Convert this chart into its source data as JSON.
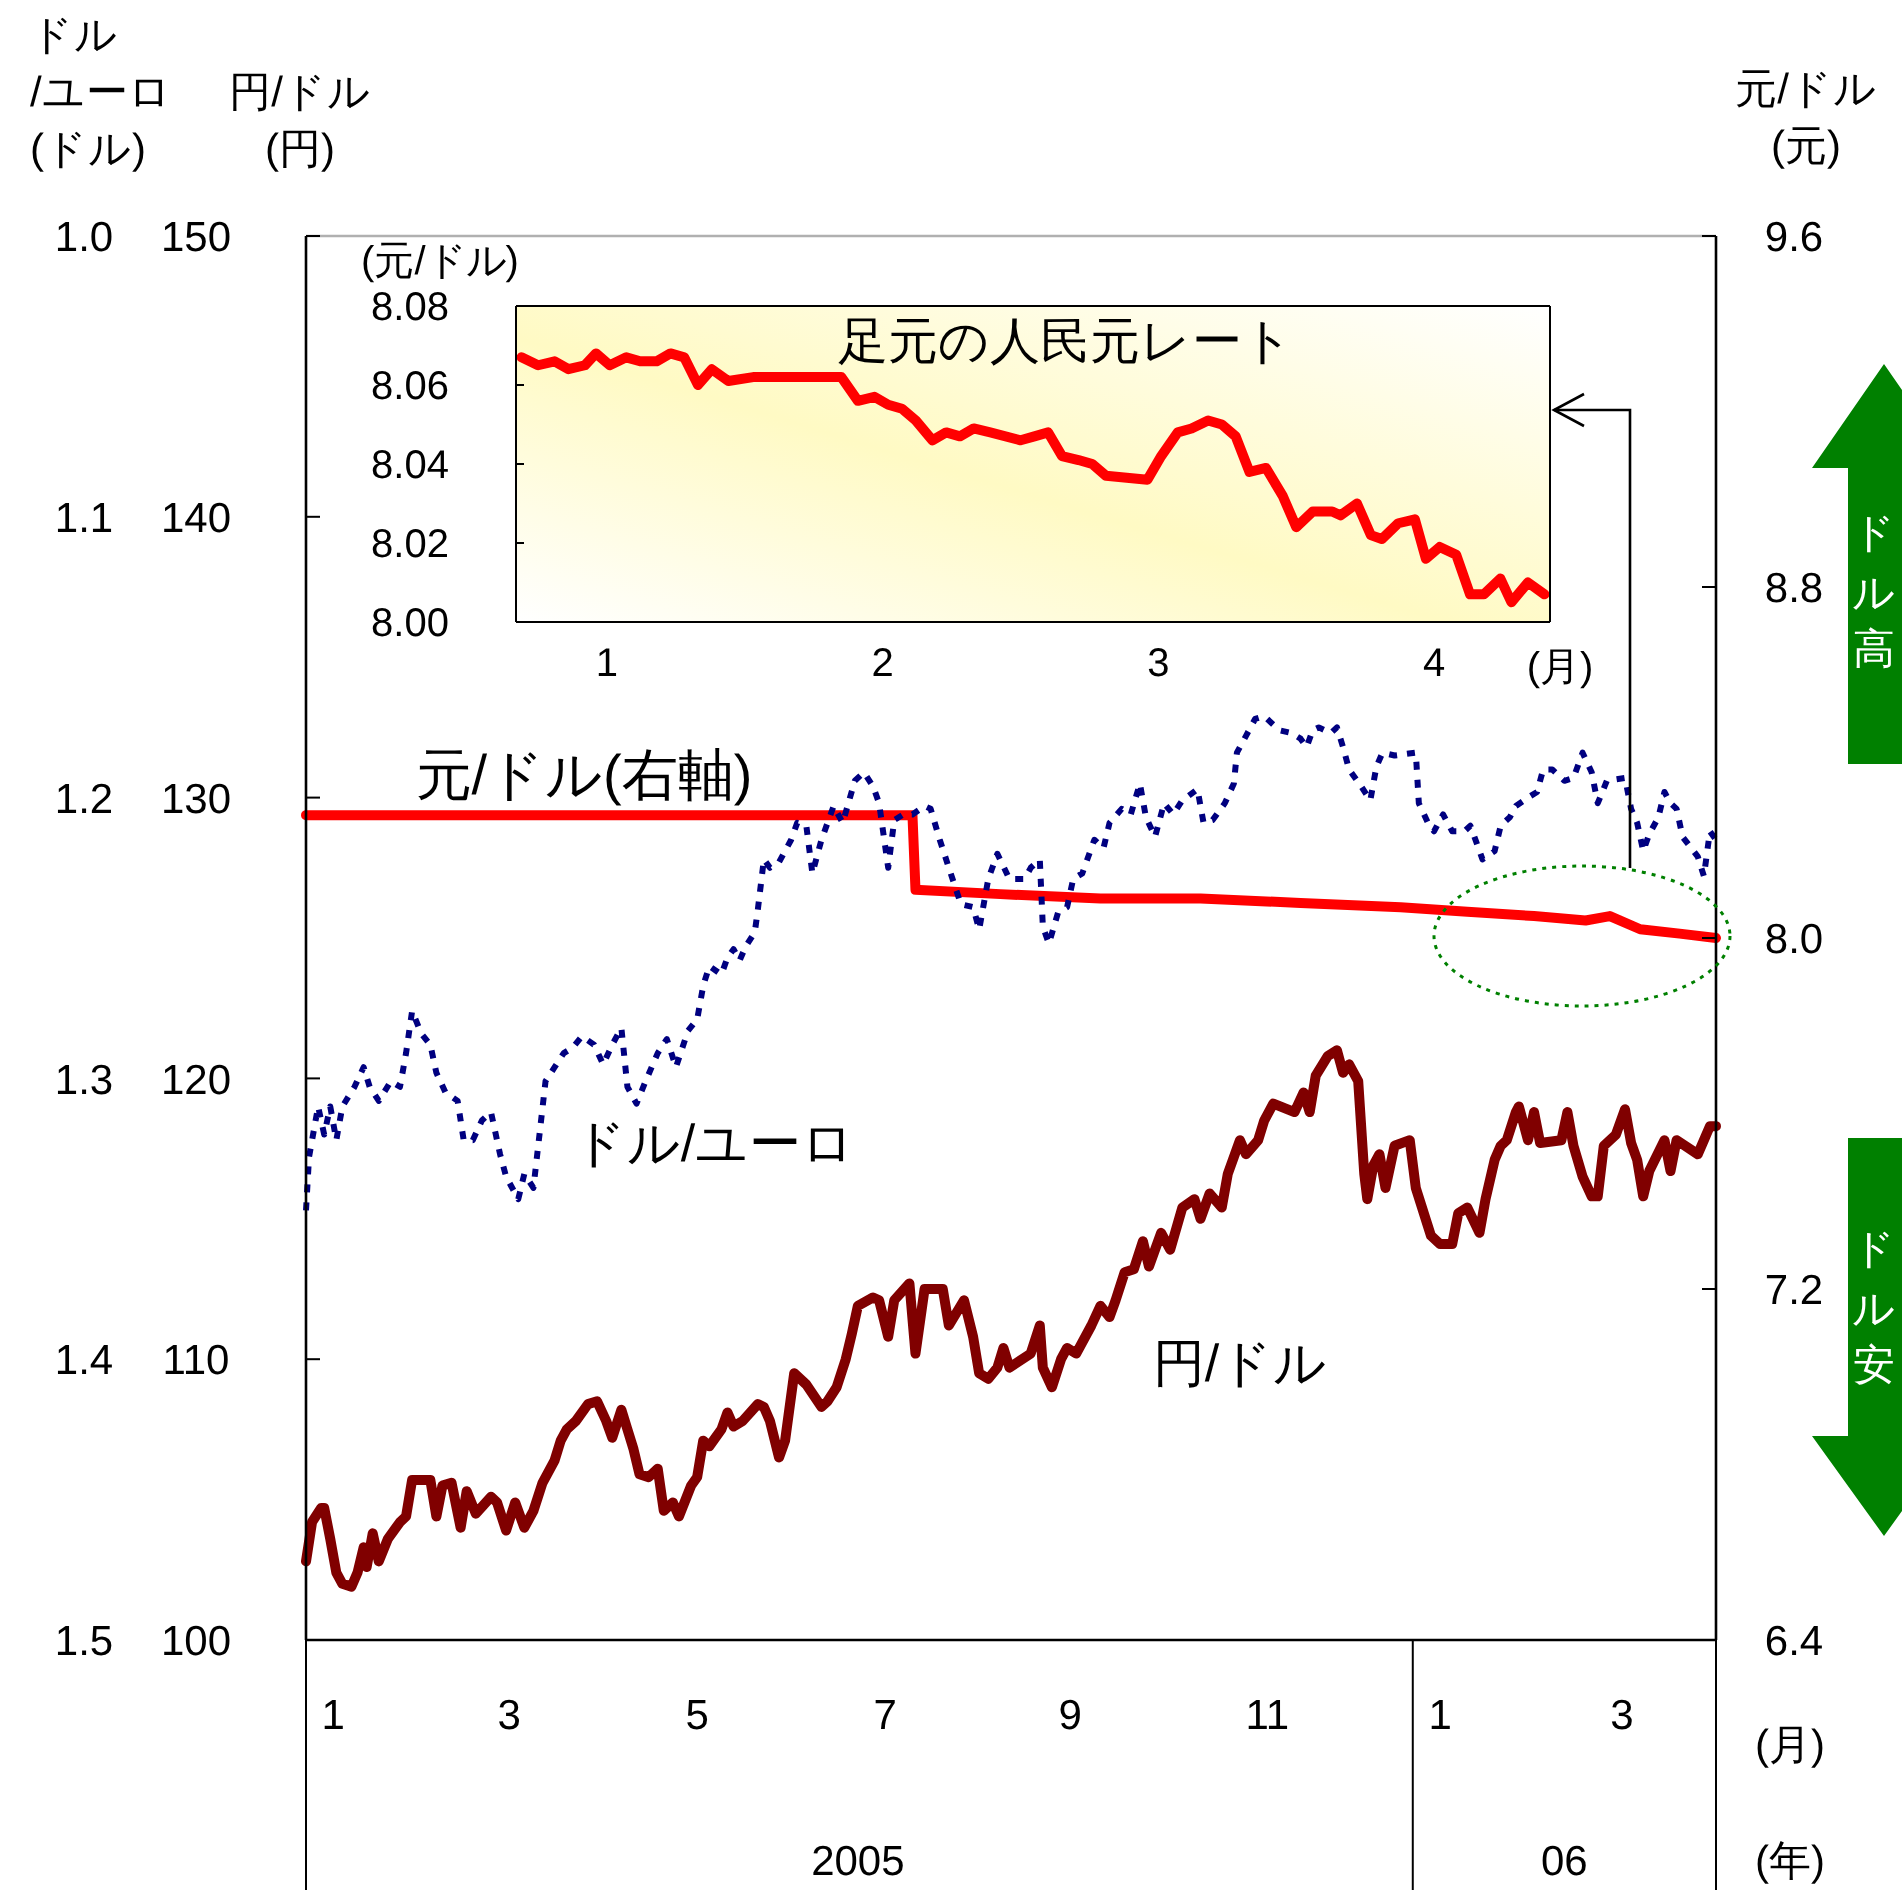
{
  "chart_data": [
    {
      "type": "line",
      "xlabel": "(月)",
      "x2label": "(年)",
      "ylabel": "円/ドル\n(円)",
      "y2label": "元/ドル\n(元)",
      "y3label": "ドル\n/ユーロ\n(ドル)",
      "xlim": [
        "2005-01-01",
        "2006-04-11"
      ],
      "xticks": [
        {
          "value": "2005-01-10",
          "label": "1"
        },
        {
          "value": "2005-03-09",
          "label": "3"
        },
        {
          "value": "2005-05-10",
          "label": "5"
        },
        {
          "value": "2005-07-11",
          "label": "7"
        },
        {
          "value": "2005-09-10",
          "label": "9"
        },
        {
          "value": "2005-11-14",
          "label": "11"
        },
        {
          "value": "2006-01-10",
          "label": "1"
        },
        {
          "value": "2006-03-11",
          "label": "3"
        }
      ],
      "x2lim": [
        "2005-01-01",
        "2006-04-11"
      ],
      "x2ticks": [
        {
          "value": "2005-07-02",
          "label": "2005"
        },
        {
          "value": "2006-02-20",
          "label": "06"
        }
      ],
      "ylim": [
        100,
        150
      ],
      "yticks": [
        100,
        110,
        120,
        130,
        140,
        150
      ],
      "y2lim": [
        6.4,
        9.6
      ],
      "y2ticks": [
        6.4,
        7.2,
        {
          "value": 8,
          "label": "8.0"
        },
        8.8,
        9.6
      ],
      "y3lim": [
        1.5,
        1
      ],
      "y3ticks": [
        1.5,
        1.4,
        1.3,
        1.2,
        1.1,
        {
          "value": 1,
          "label": "1.0"
        }
      ],
      "series": [
        {
          "name": "元/ドル(右軸)",
          "color": "#ff0000",
          "axis": "y2",
          "x": [
            "2005-01-01",
            "2005-07-20",
            "2005-07-21",
            "2005-08-18",
            "2005-09-20",
            "2005-10-23",
            "2005-11-25",
            "2005-12-28",
            "2006-01-19",
            "2006-02-10",
            "2006-02-27",
            "2006-03-07",
            "2006-03-17",
            "2006-03-30",
            "2006-04-11"
          ],
          "values": [
            8.28,
            8.28,
            8.11,
            8.1,
            8.09,
            8.09,
            8.08,
            8.07,
            8.06,
            8.05,
            8.04,
            8.05,
            8.02,
            8.01,
            8.0
          ]
        },
        {
          "name": "ドル/ユーロ",
          "color": "#000080",
          "axis": "y3",
          "line_style": "dotted",
          "x": [
            "2005-01-01",
            "2005-01-02",
            "2005-01-05",
            "2005-01-07",
            "2005-01-09",
            "2005-01-11",
            "2005-01-13",
            "2005-01-17",
            "2005-01-20",
            "2005-01-22",
            "2005-01-25",
            "2005-01-29",
            "2005-02-01",
            "2005-02-03",
            "2005-02-05",
            "2005-02-08",
            "2005-02-11",
            "2005-02-13",
            "2005-02-16",
            "2005-02-20",
            "2005-02-22",
            "2005-02-25",
            "2005-02-28",
            "2005-03-03",
            "2005-03-06",
            "2005-03-08",
            "2005-03-12",
            "2005-03-14",
            "2005-03-17",
            "2005-03-19",
            "2005-03-21",
            "2005-03-24",
            "2005-03-27",
            "2005-03-30",
            "2005-04-02",
            "2005-04-06",
            "2005-04-09",
            "2005-04-12",
            "2005-04-15",
            "2005-04-17",
            "2005-04-20",
            "2005-04-23",
            "2005-04-27",
            "2005-04-30",
            "2005-05-03",
            "2005-05-07",
            "2005-05-10",
            "2005-05-12",
            "2005-05-14",
            "2005-05-18",
            "2005-05-20",
            "2005-05-22",
            "2005-05-24",
            "2005-05-26",
            "2005-05-29",
            "2005-05-30",
            "2005-06-01",
            "2005-06-03",
            "2005-06-06",
            "2005-06-10",
            "2005-06-12",
            "2005-06-15",
            "2005-06-17",
            "2005-06-20",
            "2005-06-22",
            "2005-06-24",
            "2005-06-27",
            "2005-07-01",
            "2005-07-04",
            "2005-07-07",
            "2005-07-09",
            "2005-07-12",
            "2005-07-14",
            "2005-07-17",
            "2005-07-20",
            "2005-07-24",
            "2005-07-26",
            "2005-07-29",
            "2005-08-01",
            "2005-08-05",
            "2005-08-09",
            "2005-08-11",
            "2005-08-14",
            "2005-08-17",
            "2005-08-21",
            "2005-08-26",
            "2005-08-28",
            "2005-08-31",
            "2005-09-01",
            "2005-09-03",
            "2005-09-06",
            "2005-09-09",
            "2005-09-11",
            "2005-09-14",
            "2005-09-18",
            "2005-09-21",
            "2005-09-23",
            "2005-09-27",
            "2005-09-30",
            "2005-10-03",
            "2005-10-05",
            "2005-10-08",
            "2005-10-11",
            "2005-10-14",
            "2005-10-17",
            "2005-10-22",
            "2005-10-24",
            "2005-10-27",
            "2005-10-31",
            "2005-11-03",
            "2005-11-04",
            "2005-11-07",
            "2005-11-10",
            "2005-11-13",
            "2005-11-16",
            "2005-11-18",
            "2005-11-22",
            "2005-11-25",
            "2005-11-27",
            "2005-11-29",
            "2005-12-01",
            "2005-12-05",
            "2005-12-07",
            "2005-12-09",
            "2005-12-11",
            "2005-12-15",
            "2005-12-18",
            "2005-12-20",
            "2005-12-22",
            "2005-12-26",
            "2006-01-02",
            "2006-01-03",
            "2006-01-06",
            "2006-01-08",
            "2006-01-11",
            "2006-01-14",
            "2006-01-18",
            "2006-01-20",
            "2006-01-22",
            "2006-01-24",
            "2006-01-28",
            "2006-01-30",
            "2006-02-02",
            "2006-02-04",
            "2006-02-08",
            "2006-02-11",
            "2006-02-13",
            "2006-02-16",
            "2006-02-20",
            "2006-02-23",
            "2006-02-26",
            "2006-03-01",
            "2006-03-03",
            "2006-03-06",
            "2006-03-12",
            "2006-03-14",
            "2006-03-16",
            "2006-03-18",
            "2006-03-20",
            "2006-03-23",
            "2006-03-25",
            "2006-03-27",
            "2006-03-29",
            "2006-03-31",
            "2006-04-05",
            "2006-04-07",
            "2006-04-09",
            "2006-04-11"
          ],
          "values": [
            1.347,
            1.328,
            1.31,
            1.32,
            1.31,
            1.322,
            1.31,
            1.303,
            1.296,
            1.303,
            1.308,
            1.301,
            1.303,
            1.291,
            1.276,
            1.284,
            1.288,
            1.298,
            1.305,
            1.308,
            1.322,
            1.322,
            1.315,
            1.312,
            1.327,
            1.335,
            1.343,
            1.334,
            1.339,
            1.32,
            1.301,
            1.296,
            1.291,
            1.289,
            1.285,
            1.288,
            1.295,
            1.288,
            1.282,
            1.303,
            1.309,
            1.301,
            1.291,
            1.286,
            1.296,
            1.283,
            1.279,
            1.267,
            1.26,
            1.263,
            1.257,
            1.254,
            1.258,
            1.253,
            1.248,
            1.24,
            1.222,
            1.225,
            1.223,
            1.215,
            1.209,
            1.21,
            1.227,
            1.215,
            1.209,
            1.203,
            1.209,
            1.194,
            1.191,
            1.196,
            1.202,
            1.225,
            1.208,
            1.206,
            1.206,
            1.203,
            1.204,
            1.215,
            1.225,
            1.238,
            1.239,
            1.247,
            1.229,
            1.22,
            1.229,
            1.229,
            1.225,
            1.222,
            1.246,
            1.252,
            1.241,
            1.239,
            1.229,
            1.227,
            1.215,
            1.218,
            1.209,
            1.204,
            1.206,
            1.195,
            1.207,
            1.214,
            1.202,
            1.206,
            1.201,
            1.197,
            1.209,
            1.208,
            1.202,
            1.195,
            1.184,
            1.178,
            1.172,
            1.171,
            1.174,
            1.176,
            1.177,
            1.179,
            1.182,
            1.176,
            1.175,
            1.177,
            1.175,
            1.182,
            1.19,
            1.196,
            1.201,
            1.189,
            1.184,
            1.185,
            1.184,
            1.202,
            1.209,
            1.212,
            1.206,
            1.212,
            1.212,
            1.21,
            1.216,
            1.222,
            1.219,
            1.21,
            1.207,
            1.203,
            1.2,
            1.198,
            1.19,
            1.19,
            1.194,
            1.193,
            1.184,
            1.191,
            1.202,
            1.194,
            1.193,
            1.204,
            1.209,
            1.219,
            1.213,
            1.207,
            1.198,
            1.202,
            1.204,
            1.214,
            1.221,
            1.228,
            1.212,
            1.215
          ]
        },
        {
          "name": "円/ドル",
          "color": "#800000",
          "x": [
            "2005-01-01",
            "2005-01-03",
            "2005-01-06",
            "2005-01-07",
            "2005-01-09",
            "2005-01-11",
            "2005-01-13",
            "2005-01-16",
            "2005-01-18",
            "2005-01-20",
            "2005-01-21",
            "2005-01-23",
            "2005-01-25",
            "2005-01-28",
            "2005-02-01",
            "2005-02-03",
            "2005-02-05",
            "2005-02-11",
            "2005-02-13",
            "2005-02-15",
            "2005-02-18",
            "2005-02-21",
            "2005-02-23",
            "2005-02-26",
            "2005-03-03",
            "2005-03-05",
            "2005-03-08",
            "2005-03-11",
            "2005-03-14",
            "2005-03-17",
            "2005-03-20",
            "2005-03-24",
            "2005-03-26",
            "2005-03-28",
            "2005-03-31",
            "2005-04-04",
            "2005-04-07",
            "2005-04-10",
            "2005-04-12",
            "2005-04-15",
            "2005-04-17",
            "2005-04-19",
            "2005-04-21",
            "2005-04-24",
            "2005-04-27",
            "2005-04-29",
            "2005-05-02",
            "2005-05-04",
            "2005-05-08",
            "2005-05-10",
            "2005-05-12",
            "2005-05-14",
            "2005-05-18",
            "2005-05-20",
            "2005-05-22",
            "2005-05-25",
            "2005-05-30",
            "2005-06-01",
            "2005-06-03",
            "2005-06-06",
            "2005-06-08",
            "2005-06-11",
            "2005-06-15",
            "2005-06-20",
            "2005-06-22",
            "2005-06-25",
            "2005-06-28",
            "2005-06-30",
            "2005-07-02",
            "2005-07-07",
            "2005-07-09",
            "2005-07-12",
            "2005-07-14",
            "2005-07-19",
            "2005-07-21",
            "2005-07-24",
            "2005-07-30",
            "2005-08-01",
            "2005-08-06",
            "2005-08-09",
            "2005-08-11",
            "2005-08-14",
            "2005-08-17",
            "2005-08-19",
            "2005-08-21",
            "2005-08-28",
            "2005-08-31",
            "2005-09-01",
            "2005-09-04",
            "2005-09-07",
            "2005-09-09",
            "2005-09-12",
            "2005-09-17",
            "2005-09-20",
            "2005-09-23",
            "2005-09-25",
            "2005-09-28",
            "2005-10-01",
            "2005-10-04",
            "2005-10-06",
            "2005-10-10",
            "2005-10-13",
            "2005-10-17",
            "2005-10-21",
            "2005-10-23",
            "2005-10-26",
            "2005-10-30",
            "2005-11-01",
            "2005-11-05",
            "2005-11-07",
            "2005-11-11",
            "2005-11-13",
            "2005-11-16",
            "2005-11-23",
            "2005-11-26",
            "2005-11-28",
            "2005-11-30",
            "2005-12-04",
            "2005-12-07",
            "2005-12-09",
            "2005-12-11",
            "2005-12-14",
            "2005-12-16",
            "2005-12-17",
            "2005-12-19",
            "2005-12-21",
            "2005-12-23",
            "2005-12-26",
            "2005-12-31",
            "2006-01-02",
            "2006-01-07",
            "2006-01-10",
            "2006-01-14",
            "2006-01-16",
            "2006-01-19",
            "2006-01-23",
            "2006-01-25",
            "2006-01-28",
            "2006-01-30",
            "2006-02-01",
            "2006-02-04",
            "2006-02-05",
            "2006-02-08",
            "2006-02-10",
            "2006-02-12",
            "2006-02-19",
            "2006-02-21",
            "2006-02-23",
            "2006-02-26",
            "2006-03-01",
            "2006-03-03",
            "2006-03-05",
            "2006-03-09",
            "2006-03-12",
            "2006-03-14",
            "2006-03-16",
            "2006-03-18",
            "2006-03-20",
            "2006-03-25",
            "2006-03-27",
            "2006-03-29",
            "2006-04-05",
            "2006-04-07",
            "2006-04-09",
            "2006-04-11"
          ],
          "values": [
            102.8,
            104.2,
            104.7,
            104.7,
            103.6,
            102.4,
            102.0,
            101.9,
            102.4,
            103.3,
            102.6,
            103.8,
            102.8,
            103.6,
            104.2,
            104.4,
            105.7,
            105.7,
            104.4,
            105.5,
            105.6,
            104.0,
            105.3,
            104.5,
            105.1,
            104.9,
            103.9,
            104.9,
            104.0,
            104.6,
            105.6,
            106.4,
            107.1,
            107.5,
            107.8,
            108.4,
            108.5,
            107.8,
            107.2,
            108.2,
            107.5,
            106.8,
            105.9,
            105.8,
            106.1,
            104.6,
            104.9,
            104.4,
            105.5,
            105.8,
            107.1,
            106.9,
            107.5,
            108.1,
            107.6,
            107.8,
            108.4,
            108.3,
            107.8,
            106.5,
            107.1,
            109.5,
            109.1,
            108.3,
            108.5,
            109.0,
            110.0,
            110.9,
            111.9,
            112.2,
            112.1,
            110.8,
            112.1,
            112.7,
            110.2,
            112.5,
            112.5,
            111.2,
            112.1,
            110.8,
            109.5,
            109.3,
            109.7,
            110.4,
            109.7,
            110.2,
            111.2,
            109.7,
            109.0,
            110.0,
            110.4,
            110.2,
            111.2,
            111.9,
            111.5,
            112.1,
            113.1,
            113.2,
            114.2,
            113.3,
            114.5,
            113.9,
            115.4,
            115.7,
            115.0,
            115.9,
            115.4,
            116.6,
            117.8,
            117.3,
            117.8,
            118.5,
            119.1,
            118.8,
            119.5,
            118.8,
            120.1,
            120.8,
            121.0,
            120.2,
            120.5,
            119.9,
            116.6,
            115.7,
            116.9,
            117.3,
            116.1,
            117.6,
            117.8,
            116.1,
            114.4,
            114.1,
            114.1,
            115.2,
            115.4,
            114.5,
            115.7,
            117.1,
            117.6,
            117.8,
            118.8,
            119.0,
            117.8,
            118.8,
            117.7,
            117.8,
            118.8,
            117.6,
            116.5,
            115.8,
            115.8,
            117.6,
            118.0,
            118.9,
            117.7,
            117.1,
            115.8,
            116.7,
            117.8,
            116.7,
            117.8,
            117.3,
            117.8,
            118.3,
            118.3
          ]
        }
      ],
      "annotations": [
        "ドル高",
        "ドル安"
      ]
    },
    {
      "type": "line",
      "title": "足元の人民元レート",
      "ylabel": "(元/ドル)",
      "xlabel": "(月)",
      "xlim": [
        0.67,
        4.42
      ],
      "xticks": [
        1,
        2,
        3,
        4
      ],
      "ylim": [
        8,
        8.08
      ],
      "yticks": [
        {
          "value": 8,
          "label": "8.00"
        },
        8.02,
        8.04,
        8.06,
        8.08
      ],
      "series": [
        {
          "color": "#ff0000",
          "x": [
            0.69,
            0.75,
            0.81,
            0.86,
            0.92,
            0.96,
            1.01,
            1.07,
            1.12,
            1.18,
            1.23,
            1.28,
            1.33,
            1.38,
            1.44,
            1.53,
            1.61,
            1.85,
            1.91,
            1.97,
            2.02,
            2.07,
            2.12,
            2.18,
            2.23,
            2.28,
            2.33,
            2.39,
            2.5,
            2.55,
            2.6,
            2.65,
            2.71,
            2.76,
            2.81,
            2.96,
            3.01,
            3.07,
            3.12,
            3.18,
            3.23,
            3.28,
            3.33,
            3.39,
            3.45,
            3.5,
            3.56,
            3.63,
            3.66,
            3.72,
            3.77,
            3.81,
            3.87,
            3.93,
            3.97,
            4.02,
            4.08,
            4.13,
            4.18,
            4.24,
            4.28,
            4.34,
            4.4
          ],
          "values": [
            8.067,
            8.065,
            8.066,
            8.064,
            8.065,
            8.068,
            8.065,
            8.067,
            8.066,
            8.066,
            8.068,
            8.067,
            8.06,
            8.064,
            8.061,
            8.062,
            8.062,
            8.062,
            8.056,
            8.057,
            8.055,
            8.054,
            8.051,
            8.046,
            8.048,
            8.047,
            8.049,
            8.048,
            8.046,
            8.047,
            8.048,
            8.042,
            8.041,
            8.04,
            8.037,
            8.036,
            8.042,
            8.048,
            8.049,
            8.051,
            8.05,
            8.047,
            8.038,
            8.039,
            8.032,
            8.024,
            8.028,
            8.028,
            8.027,
            8.03,
            8.022,
            8.021,
            8.025,
            8.026,
            8.016,
            8.019,
            8.017,
            8.007,
            8.007,
            8.011,
            8.005,
            8.01,
            8.007
          ]
        }
      ]
    }
  ]
}
